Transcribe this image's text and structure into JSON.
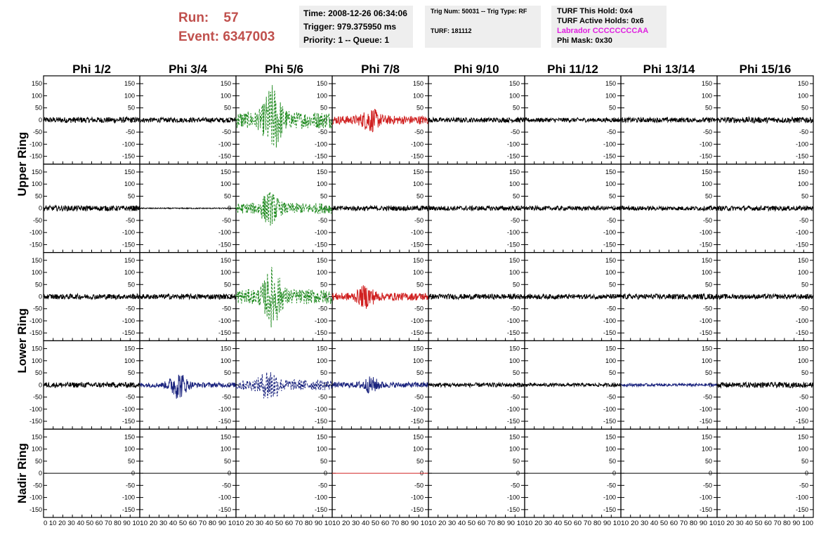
{
  "header": {
    "run_label": "Run:",
    "run_value": "57",
    "event_label": "Event:",
    "event_value": "6347003",
    "time": "Time: 2008-12-26 06:34:06",
    "trigger": "Trigger: 979.375950 ms",
    "priority": "Priority: 1 -- Queue: 1",
    "trig_num": "Trig Num: 50031 -- Trig Type: RF",
    "turf": "TURF: 181112",
    "turf_this_hold": "TURF This Hold: 0x4",
    "turf_active_holds": "TURF Active Holds: 0x6",
    "labrador": "Labrador CCCCCCCCAA",
    "phi_mask": "Phi Mask: 0x30"
  },
  "colors": {
    "header_red": "#c0504d",
    "labrador_magenta": "#e020e0",
    "trace_black": "#000000",
    "trace_green": "#1f8a1f",
    "trace_red": "#d02020",
    "trace_navy": "#1a237e"
  },
  "chart_data": {
    "type": "line",
    "columns": [
      "Phi 1/2",
      "Phi 3/4",
      "Phi 5/6",
      "Phi 7/8",
      "Phi 9/10",
      "Phi 11/12",
      "Phi 13/14",
      "Phi 15/16"
    ],
    "rings": [
      "Upper Ring",
      "Lower Ring",
      "Nadir Ring"
    ],
    "row_ring_labels": [
      "Upper Ring",
      "",
      "Lower Ring",
      "",
      "Nadir Ring"
    ],
    "y_ticks": [
      150,
      100,
      50,
      0,
      -50,
      -100,
      -150
    ],
    "ylim": [
      -165,
      165
    ],
    "x_ticks": [
      0,
      10,
      20,
      30,
      40,
      50,
      60,
      70,
      80,
      90,
      100
    ],
    "x_tick_labels_first": "0 10 20 30 40 50 60 70 80 90 10",
    "x_tick_labels_middle": "10 20 30 40 50 60 70 80 90 10",
    "x_tick_labels_last": "10 20 30 40 50 60 70 80 90 100",
    "xlim": [
      0,
      100
    ],
    "traces": [
      [
        {
          "style": "black",
          "amp": 12
        },
        {
          "style": "black",
          "amp": 10
        },
        {
          "style": "green",
          "amp": 35,
          "burst": 115,
          "center": 38,
          "dash": true
        },
        {
          "style": "red",
          "amp": 18,
          "burst": 35,
          "center": 40
        },
        {
          "style": "black",
          "amp": 10
        },
        {
          "style": "black",
          "amp": 9
        },
        {
          "style": "black",
          "amp": 10
        },
        {
          "style": "black",
          "amp": 12
        }
      ],
      [
        {
          "style": "black",
          "amp": 11
        },
        {
          "style": "black",
          "amp": 2
        },
        {
          "style": "green",
          "amp": 22,
          "burst": 50,
          "center": 35,
          "dash": true
        },
        {
          "style": "black",
          "amp": 10
        },
        {
          "style": "black",
          "amp": 10
        },
        {
          "style": "black",
          "amp": 9
        },
        {
          "style": "black",
          "amp": 9
        },
        {
          "style": "black",
          "amp": 10
        }
      ],
      [
        {
          "style": "black",
          "amp": 11
        },
        {
          "style": "black",
          "amp": 11
        },
        {
          "style": "green",
          "amp": 30,
          "burst": 100,
          "center": 38,
          "dash": true
        },
        {
          "style": "red",
          "amp": 16,
          "burst": 35,
          "center": 35
        },
        {
          "style": "black",
          "amp": 11
        },
        {
          "style": "black",
          "amp": 10
        },
        {
          "style": "black",
          "amp": 11
        },
        {
          "style": "black",
          "amp": 10
        }
      ],
      [
        {
          "style": "black",
          "amp": 11
        },
        {
          "style": "navy",
          "amp": 10,
          "burst": 50,
          "center": 40
        },
        {
          "style": "navy",
          "amp": 22,
          "burst": 55,
          "center": 35,
          "dash": true
        },
        {
          "style": "navy",
          "amp": 11,
          "burst": 25,
          "center": 40
        },
        {
          "style": "black",
          "amp": 9
        },
        {
          "style": "black",
          "amp": 7
        },
        {
          "style": "navy",
          "amp": 6
        },
        {
          "style": "black",
          "amp": 11
        }
      ],
      [
        {
          "style": "flat-black"
        },
        {
          "style": "flat-black"
        },
        {
          "style": "flat-black"
        },
        {
          "style": "flat-red"
        },
        {
          "style": "flat-black"
        },
        {
          "style": "flat-black"
        },
        {
          "style": "flat-black"
        },
        {
          "style": "flat-black"
        }
      ]
    ]
  }
}
